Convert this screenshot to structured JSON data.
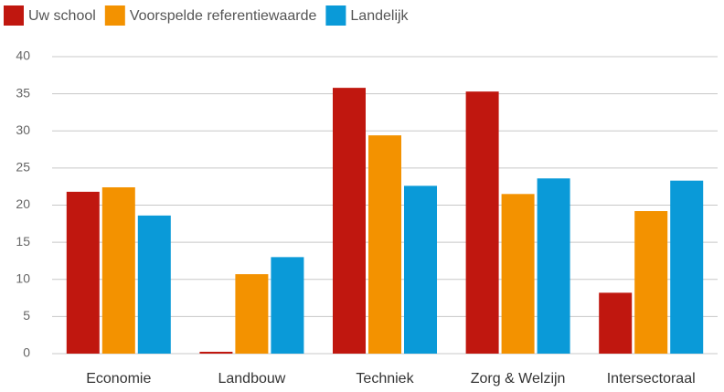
{
  "chart_data": {
    "type": "bar",
    "categories": [
      "Economie",
      "Landbouw",
      "Techniek",
      "Zorg & Welzijn",
      "Intersectoraal"
    ],
    "series": [
      {
        "name": "Uw school",
        "color": "#c0170f",
        "values": [
          21.8,
          0.25,
          35.8,
          35.3,
          8.2
        ]
      },
      {
        "name": "Voorspelde referentiewaarde",
        "color": "#f39200",
        "values": [
          22.4,
          10.7,
          29.4,
          21.5,
          19.2
        ]
      },
      {
        "name": "Landelijk",
        "color": "#0a9ad8",
        "values": [
          18.6,
          13.0,
          22.6,
          23.6,
          23.3
        ]
      }
    ],
    "ylim": [
      0,
      40
    ],
    "yticks": [
      0,
      5,
      10,
      15,
      20,
      25,
      30,
      35,
      40
    ],
    "grid": true,
    "legend": "top-left"
  }
}
